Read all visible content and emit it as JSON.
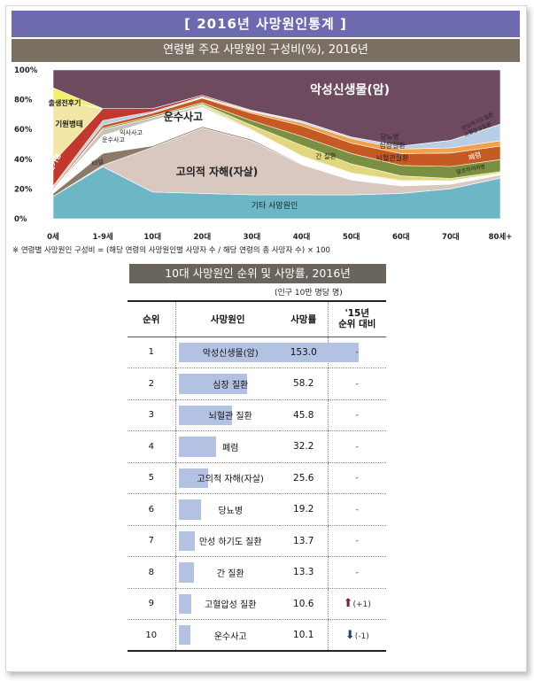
{
  "header": {
    "main_title": "[ 2016년 사망원인통계 ]",
    "chart_title": "연령별 주요 사망원인 구성비(%), 2016년",
    "footnote": "※ 연령별 사망원인 구성비 = (해당 연령의 사망원인별 사망자 수 / 해당 연령의 총 사망자 수) × 100",
    "table_title": "10대 사망원인 순위 및 사망률, 2016년",
    "unit": "(인구 10만 명당 명)"
  },
  "chart_data": [
    {
      "type": "area",
      "title": "연령별 주요 사망원인 구성비(%), 2016년",
      "stacked": true,
      "x_labels": [
        "0세",
        "1-9세",
        "10대",
        "20대",
        "30대",
        "40대",
        "50대",
        "60대",
        "70대",
        "80세+"
      ],
      "y_ticks": [
        "0%",
        "20%",
        "40%",
        "60%",
        "80%",
        "100%"
      ],
      "ylim": [
        0,
        100
      ],
      "series": [
        {
          "name": "기타 사망원인",
          "color": "#6cb6c6",
          "values": [
            15,
            35,
            18,
            17,
            16,
            16,
            16,
            17,
            20,
            27
          ]
        },
        {
          "name": "고의적 자해(자살)",
          "color": "#d9c8c0",
          "values": [
            0,
            1,
            30,
            44,
            36,
            20,
            10,
            5,
            3,
            2
          ]
        },
        {
          "name": "타살",
          "color": "#8c7a69",
          "values": [
            2,
            8,
            1,
            1,
            1,
            0.5,
            0.3,
            0.2,
            0.1,
            0.1
          ]
        },
        {
          "name": "운수사고",
          "color": "#ffffff",
          "values": [
            3,
            12,
            17,
            13,
            6,
            5,
            4,
            3,
            2,
            1
          ]
        },
        {
          "name": "익사사고",
          "color": "#c9c2b8",
          "values": [
            0,
            4,
            2,
            1,
            0.5,
            0.5,
            0.5,
            0.5,
            0.3,
            0.2
          ]
        },
        {
          "name": "간 질환",
          "color": "#e3d77d",
          "values": [
            0,
            0,
            0,
            1,
            3,
            7,
            6,
            3,
            1.5,
            1
          ]
        },
        {
          "name": "뇌혈관 질환",
          "color": "#7a8f3f",
          "values": [
            0,
            1,
            1,
            1,
            3,
            6,
            7,
            7,
            8,
            8
          ]
        },
        {
          "name": "심장질환",
          "color": "#c55a22",
          "values": [
            1,
            2,
            2,
            3,
            5,
            7,
            7,
            8,
            9,
            9
          ]
        },
        {
          "name": "당뇨병",
          "color": "#f2a04a",
          "values": [
            0,
            0,
            0,
            0.5,
            1,
            2,
            3,
            3,
            3.5,
            3.5
          ]
        },
        {
          "name": "폐렴",
          "color": "#b8cde6",
          "values": [
            1,
            3,
            1,
            0.5,
            0.5,
            1,
            1,
            2,
            5,
            11
          ]
        },
        {
          "name": "선천기형",
          "color": "#c0392b",
          "values": [
            16,
            8,
            2,
            1,
            0.5,
            0.2,
            0.1,
            0,
            0,
            0
          ]
        },
        {
          "name": "기원병태",
          "color": "#f1e6a6",
          "values": [
            42,
            0,
            0,
            0,
            0,
            0,
            0,
            0,
            0,
            0
          ]
        },
        {
          "name": "출생전후기",
          "color": "#f4ef6a",
          "values": [
            8,
            0,
            0,
            0,
            0,
            0,
            0,
            0,
            0,
            0
          ]
        },
        {
          "name": "악성신생물(암)",
          "color": "#6e4a5e",
          "values": [
            12,
            26,
            26,
            17,
            27,
            34,
            45,
            51,
            47,
            36
          ]
        }
      ],
      "labels": {
        "cancer": "악성신생물(암)",
        "transport": "운수사고",
        "suicide": "고의적 자해(자살)",
        "other": "기타 사망원인",
        "perinatal": "출생전후기",
        "origin": "기원병태",
        "congenital": "선천기형",
        "homicide": "타살",
        "transport_small": "운수사고",
        "drowning": "익사사고",
        "liver": "간 질환",
        "diabetes": "당뇨병",
        "heart": "심장질환",
        "cerebro": "뇌혈관질환",
        "pneumonia": "폐렴",
        "right_small": "만성하기도질환",
        "right_small2": "고혈압성질환",
        "right_small3": "알츠하이머병"
      }
    },
    {
      "type": "table",
      "title": "10대 사망원인 순위 및 사망률, 2016년",
      "columns": [
        "순위",
        "사망원인",
        "사망률",
        "'15년 순위 대비"
      ],
      "rows": [
        {
          "rank": "1",
          "cause": "악성신생물(암)",
          "rate": 153.0,
          "change": "-"
        },
        {
          "rank": "2",
          "cause": "심장 질환",
          "rate": 58.2,
          "change": "-"
        },
        {
          "rank": "3",
          "cause": "뇌혈관 질환",
          "rate": 45.8,
          "change": "-"
        },
        {
          "rank": "4",
          "cause": "폐렴",
          "rate": 32.2,
          "change": "-"
        },
        {
          "rank": "5",
          "cause": "고의적 자해(자살)",
          "rate": 25.6,
          "change": "-"
        },
        {
          "rank": "6",
          "cause": "당뇨병",
          "rate": 19.2,
          "change": "-"
        },
        {
          "rank": "7",
          "cause": "만성 하기도 질환",
          "rate": 13.7,
          "change": "-"
        },
        {
          "rank": "8",
          "cause": "간 질환",
          "rate": 13.3,
          "change": "-"
        },
        {
          "rank": "9",
          "cause": "고혈압성 질환",
          "rate": 10.6,
          "change": "(+1)",
          "direction": "up"
        },
        {
          "rank": "10",
          "cause": "운수사고",
          "rate": 10.1,
          "change": "(-1)",
          "direction": "down"
        }
      ]
    }
  ],
  "table_headers": {
    "rank": "순위",
    "cause": "사망원인",
    "rate": "사망률",
    "change_line1": "'15년",
    "change_line2": "순위 대비"
  },
  "colors": {
    "title_bar": "#6e6ab0",
    "subtitle_bar": "#7b6f64",
    "table_title_bar": "#6a645e",
    "rate_bar": "#b3c2e2"
  }
}
